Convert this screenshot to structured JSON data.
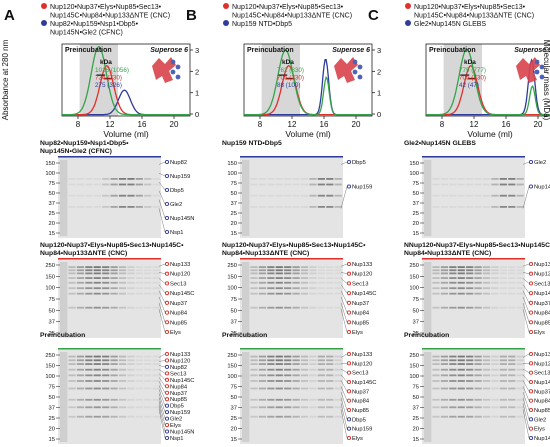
{
  "panels": [
    {
      "letter": "A",
      "legend": [
        {
          "text": "Nup120•Nup37•Elys•Nup85•Sec13•",
          "color": "#e0302a"
        },
        {
          "text": "Nup145C•Nup84•Nup133ΔNTE (CNC)",
          "color": ""
        },
        {
          "text": "Nup82•Nup159•Nsp1•Dbp5•",
          "color": "#2f3c9c"
        },
        {
          "text": "Nup145N•Gle2 (CFNC)",
          "color": ""
        }
      ],
      "chart": {
        "preincubation_label": "Preincubation",
        "column_label": "Superose 6",
        "kda_label": "kDa",
        "kda_values": [
          {
            "text": "1016 (1056)",
            "color": "#36a34a"
          },
          {
            "text": "734 (730)",
            "color": "#e0302a"
          },
          {
            "text": "275 (326)",
            "color": "#2f3c9c"
          }
        ],
        "xticks": [
          "8",
          "12",
          "16",
          "20"
        ],
        "yticks": [
          "0",
          "1",
          "2",
          "3"
        ]
      },
      "gels": [
        {
          "title": [
            "Nup82•Nup159•Nsp1•Dbp5•",
            "Nup145N•Gle2 (CFNC)"
          ],
          "bar_color": "#2f3c9c",
          "kda": [
            "150",
            "100",
            "75",
            "50",
            "37",
            "25",
            "20",
            "15"
          ],
          "labels": [
            "Nup82",
            "Nup159",
            "Dbp5",
            "Gle2",
            "Nup145N",
            "Nsp1"
          ]
        },
        {
          "title": [
            "Nup120•Nup37•Elys•Nup85•Sec13•Nup145C•",
            "Nup84•Nup133ΔNTE (CNC)"
          ],
          "bar_color": "#e0302a",
          "kda": [
            "250",
            "150",
            "100",
            "75",
            "50",
            "37",
            "25"
          ],
          "labels": [
            "Nup133",
            "Nup120",
            "Sec13",
            "Nup145C",
            "Nup37",
            "Nup84",
            "Nup85",
            "Elys"
          ]
        },
        {
          "title": [
            "Preincubation",
            ""
          ],
          "bar_color": "#36a34a",
          "kda": [
            "250",
            "150",
            "100",
            "75",
            "50",
            "37",
            "25",
            "20",
            "15"
          ],
          "labels": [
            "Nup133",
            "Nup120",
            "Nup82",
            "Sec13",
            "Nup145C",
            "Nup84",
            "Nup37",
            "Nup85",
            "Dbp5",
            "Nup159",
            "Gle2",
            "Elys",
            "Nup145N",
            "Nsp1"
          ]
        }
      ]
    },
    {
      "letter": "B",
      "legend": [
        {
          "text": "Nup120•Nup37•Elys•Nup85•Sec13•",
          "color": "#e0302a"
        },
        {
          "text": "Nup145C•Nup84•Nup133ΔNTE (CNC)",
          "color": ""
        },
        {
          "text": "Nup159 NTD•Dbp5",
          "color": "#2f3c9c"
        },
        {
          "text": "",
          "color": ""
        }
      ],
      "chart": {
        "preincubation_label": "Preincubation",
        "column_label": "Superose 6",
        "kda_label": "kDa",
        "kda_values": [
          {
            "text": "762 (830)",
            "color": "#36a34a"
          },
          {
            "text": "705 (730)",
            "color": "#e0302a"
          },
          {
            "text": "88 (100)",
            "color": "#2f3c9c"
          }
        ],
        "xticks": [
          "8",
          "12",
          "16",
          "20"
        ],
        "yticks": [
          "0",
          "1",
          "2",
          "3"
        ]
      },
      "gels": [
        {
          "title": [
            "Nup159 NTD•Dbp5",
            ""
          ],
          "bar_color": "#2f3c9c",
          "kda": [
            "150",
            "100",
            "75",
            "50",
            "37",
            "25",
            "20",
            "15"
          ],
          "labels": [
            "Dbp5",
            "Nup159"
          ]
        },
        {
          "title": [
            "Nup120•Nup37•Elys•Nup85•Sec13•Nup145C•",
            "Nup84•Nup133ΔNTE (CNC)"
          ],
          "bar_color": "#e0302a",
          "kda": [
            "250",
            "150",
            "100",
            "75",
            "50",
            "37",
            "25"
          ],
          "labels": [
            "Nup133",
            "Nup120",
            "Sec13",
            "Nup145C",
            "Nup37",
            "Nup84",
            "Nup85",
            "Elys"
          ]
        },
        {
          "title": [
            "Preincubation",
            ""
          ],
          "bar_color": "#36a34a",
          "kda": [
            "250",
            "150",
            "100",
            "75",
            "50",
            "37",
            "25",
            "20",
            "15"
          ],
          "labels": [
            "Nup133",
            "Nup120",
            "Sec13",
            "Nup145C",
            "Nup37",
            "Nup84",
            "Nup85",
            "Dbp5",
            "Nup159",
            "Elys"
          ]
        }
      ]
    },
    {
      "letter": "C",
      "legend": [
        {
          "text": "Nup120•Nup37•Elys•Nup85•Sec13•",
          "color": "#e0302a"
        },
        {
          "text": "Nup145C•Nup84•Nup133ΔNTE (CNC)",
          "color": ""
        },
        {
          "text": "Gle2•Nup145N GLEBS",
          "color": "#2f3c9c"
        },
        {
          "text": "",
          "color": ""
        }
      ],
      "chart": {
        "preincubation_label": "Preincubation",
        "column_label": "Superose 6",
        "kda_label": "kDa",
        "kda_values": [
          {
            "text": "779 (777)",
            "color": "#36a34a"
          },
          {
            "text": "705 (730)",
            "color": "#e0302a"
          },
          {
            "text": "42 (47)",
            "color": "#2f3c9c"
          }
        ],
        "xticks": [
          "8",
          "12",
          "16",
          "20"
        ],
        "yticks": [
          "0",
          "1",
          "2",
          "3"
        ]
      },
      "gels": [
        {
          "title": [
            "Gle2•Nup145N GLEBS",
            ""
          ],
          "bar_color": "#2f3c9c",
          "kda": [
            "150",
            "100",
            "75",
            "50",
            "37",
            "25",
            "20",
            "15"
          ],
          "labels": [
            "Gle2",
            "Nup145N"
          ]
        },
        {
          "title": [
            "NNup120•Nup37•Elys•Nup85•Sec13•Nup145C•",
            "Nup84•Nup133ΔNTE (CNC)"
          ],
          "bar_color": "#e0302a",
          "kda": [
            "250",
            "150",
            "100",
            "75",
            "50",
            "37",
            "25"
          ],
          "labels": [
            "Nup133",
            "Nup120",
            "Sec13",
            "Nup145C",
            "Nup37",
            "Nup84",
            "Nup85",
            "Elys"
          ]
        },
        {
          "title": [
            "Preincubation",
            ""
          ],
          "bar_color": "#36a34a",
          "kda": [
            "250",
            "150",
            "100",
            "75",
            "50",
            "37",
            "25",
            "20",
            "15"
          ],
          "labels": [
            "Nup133",
            "Nup120",
            "Sec13",
            "Nup145C",
            "Nup37",
            "Nup84",
            "Nup85",
            "Gle2",
            "Elys",
            "Nup145N"
          ]
        }
      ]
    }
  ],
  "axes": {
    "ylabel": "Absorbance at 280 nm",
    "y2label": "Molecular mass (MDa)",
    "xlabel": "Volume (ml)"
  },
  "colors": {
    "cnc": "#e0302a",
    "partner": "#2f3c9c",
    "preincubation": "#36a34a"
  }
}
